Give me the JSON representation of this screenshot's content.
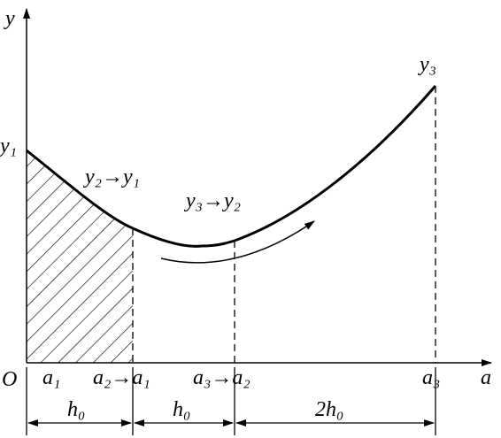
{
  "axes": {
    "y_label": "y",
    "x_label": "a",
    "origin": "O"
  },
  "curve_labels": {
    "start": "y₁",
    "end": "y₃",
    "shift_left": "y₂→y₁",
    "shift_right": "y₃→y₂"
  },
  "x_points": [
    "a₁",
    "a₂→a₁",
    "a₃→a₂",
    "a₃"
  ],
  "intervals": [
    "h₀",
    "h₀",
    "2h₀"
  ]
}
